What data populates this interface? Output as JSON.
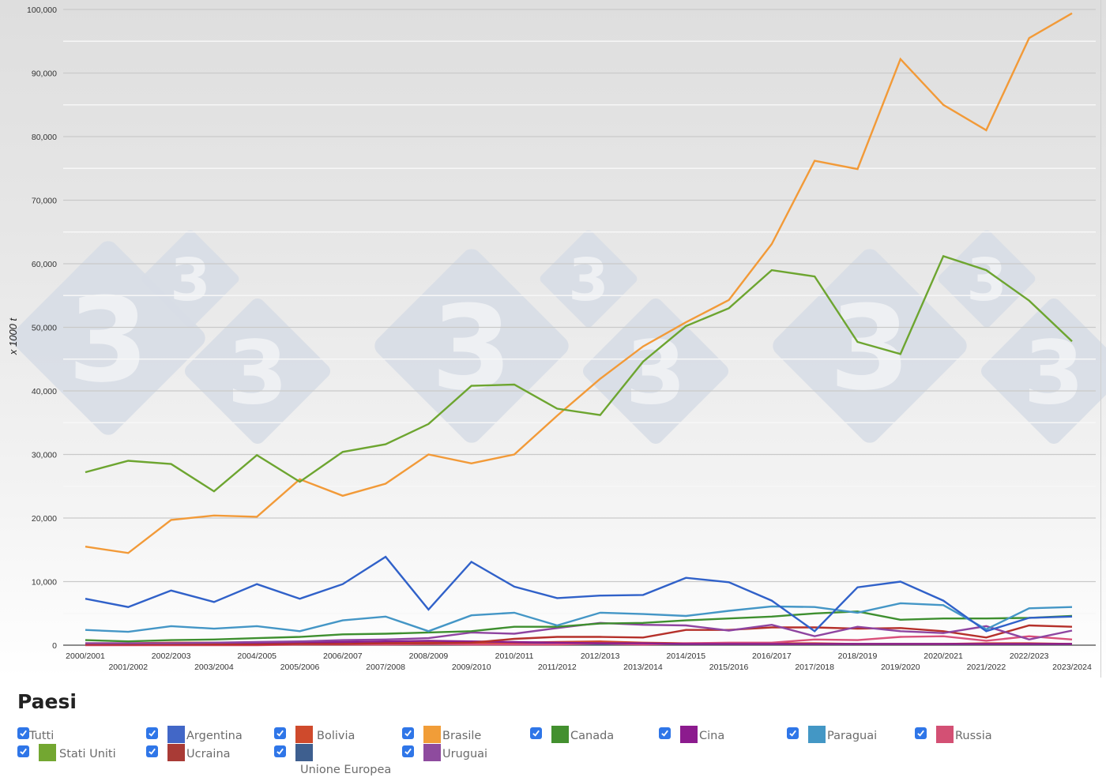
{
  "chart_data": {
    "type": "line",
    "title": "",
    "xlabel": "",
    "ylabel": "x 1000 t",
    "ylim": [
      0,
      100000
    ],
    "y_ticks": [
      "0",
      "10,000",
      "20,000",
      "30,000",
      "40,000",
      "50,000",
      "60,000",
      "70,000",
      "80,000",
      "90,000",
      "100,000"
    ],
    "grid": true,
    "legend_position": "bottom",
    "categories": [
      "2000/2001",
      "2001/2002",
      "2002/2003",
      "2003/2004",
      "2004/2005",
      "2005/2006",
      "2006/2007",
      "2007/2008",
      "2008/2009",
      "2009/2010",
      "2010/2011",
      "2011/2012",
      "2012/2013",
      "2013/2014",
      "2014/2015",
      "2015/2016",
      "2016/2017",
      "2017/2018",
      "2018/2019",
      "2019/2020",
      "2020/2021",
      "2021/2022",
      "2022/2023",
      "2023/2024"
    ],
    "series": [
      {
        "name": "Argentina",
        "color": "#3061c9",
        "values": [
          7300,
          6000,
          8600,
          6800,
          9600,
          7300,
          9600,
          13900,
          5600,
          13100,
          9200,
          7400,
          7800,
          7900,
          10600,
          9900,
          7000,
          2200,
          9100,
          10000,
          7000,
          2200,
          4300,
          4500
        ]
      },
      {
        "name": "Bolivia",
        "color": "#d04a2a",
        "values": [
          300,
          300,
          400,
          400,
          400,
          500,
          500,
          500,
          500,
          400,
          400,
          500,
          600,
          400,
          300,
          300,
          300,
          300,
          200,
          200,
          200,
          300,
          300,
          200
        ]
      },
      {
        "name": "Brasile",
        "color": "#f29a38",
        "values": [
          15500,
          14500,
          19700,
          20400,
          20200,
          26100,
          23500,
          25400,
          30000,
          28600,
          30000,
          36100,
          41900,
          47000,
          50800,
          54300,
          63100,
          76200,
          74900,
          92200,
          85000,
          81000,
          95500,
          99400
        ]
      },
      {
        "name": "Canada",
        "color": "#3e8f2f",
        "values": [
          800,
          600,
          800,
          900,
          1100,
          1300,
          1700,
          1800,
          2000,
          2200,
          2900,
          2900,
          3400,
          3500,
          3900,
          4200,
          4500,
          5000,
          5300,
          4000,
          4200,
          4200,
          4300,
          4600
        ]
      },
      {
        "name": "Cina",
        "color": "#8b1d8f",
        "values": [
          100,
          100,
          200,
          200,
          300,
          400,
          500,
          600,
          700,
          600,
          500,
          400,
          300,
          300,
          200,
          200,
          200,
          200,
          200,
          200,
          200,
          200,
          200,
          200
        ]
      },
      {
        "name": "Paraguai",
        "color": "#4496c6",
        "values": [
          2400,
          2100,
          3000,
          2600,
          3000,
          2200,
          3900,
          4500,
          2200,
          4700,
          5100,
          3100,
          5100,
          4900,
          4600,
          5400,
          6100,
          6000,
          5100,
          6600,
          6300,
          2500,
          5800,
          6000
        ]
      },
      {
        "name": "Russia",
        "color": "#d9507a",
        "values": [
          0,
          0,
          0,
          0,
          0,
          100,
          100,
          100,
          200,
          100,
          100,
          100,
          300,
          100,
          300,
          400,
          400,
          900,
          800,
          1300,
          1400,
          700,
          1400,
          900
        ]
      },
      {
        "name": "Stati Uniti",
        "color": "#6da530",
        "values": [
          27200,
          29000,
          28500,
          24200,
          29900,
          25700,
          30400,
          31600,
          34800,
          40800,
          41000,
          37200,
          36200,
          44600,
          50200,
          53000,
          59000,
          58000,
          47700,
          45800,
          61200,
          59000,
          54200,
          47800
        ]
      },
      {
        "name": "Ucraina",
        "color": "#b5302a",
        "values": [
          100,
          100,
          100,
          100,
          100,
          200,
          200,
          300,
          300,
          400,
          1000,
          1300,
          1300,
          1200,
          2400,
          2400,
          2800,
          2800,
          2600,
          2700,
          2200,
          1200,
          3100,
          2900
        ]
      },
      {
        "name": "Unione Europea",
        "color": "#3f5f91",
        "values": [
          200,
          200,
          200,
          200,
          200,
          200,
          200,
          200,
          200,
          200,
          200,
          200,
          200,
          200,
          200,
          200,
          200,
          200,
          200,
          200,
          200,
          200,
          200,
          200
        ]
      },
      {
        "name": "Uruguai",
        "color": "#8e44a0",
        "values": [
          300,
          300,
          300,
          400,
          500,
          600,
          800,
          900,
          1100,
          2000,
          1800,
          2700,
          3500,
          3200,
          3100,
          2300,
          3200,
          1400,
          2900,
          2200,
          1900,
          3000,
          900,
          2300
        ]
      }
    ]
  },
  "legend": {
    "title": "Paesi",
    "items": [
      {
        "label": "Tutti",
        "checked": true
      },
      {
        "label": "Argentina",
        "checked": true,
        "color": "#4267c7"
      },
      {
        "label": "Bolivia",
        "checked": true,
        "color": "#cf4a2c"
      },
      {
        "label": "Brasile",
        "checked": true,
        "color": "#f19d38"
      },
      {
        "label": "Canada",
        "checked": true,
        "color": "#43902f"
      },
      {
        "label": "Cina",
        "checked": true,
        "color": "#8c1b8e"
      },
      {
        "label": "Paraguai",
        "checked": true,
        "color": "#4397c5"
      },
      {
        "label": "Russia",
        "checked": true,
        "color": "#d35074"
      },
      {
        "label": "Stati Uniti",
        "checked": true,
        "color": "#73a731"
      },
      {
        "label": "Ucraina",
        "checked": true,
        "color": "#a93b36"
      },
      {
        "label": "Unione Europea",
        "checked": true,
        "color": "#3e5f8f"
      },
      {
        "label": "Uruguai",
        "checked": true,
        "color": "#8e4b9e"
      }
    ]
  },
  "watermark": {
    "glyph": "3",
    "color": "#d7dde6"
  }
}
